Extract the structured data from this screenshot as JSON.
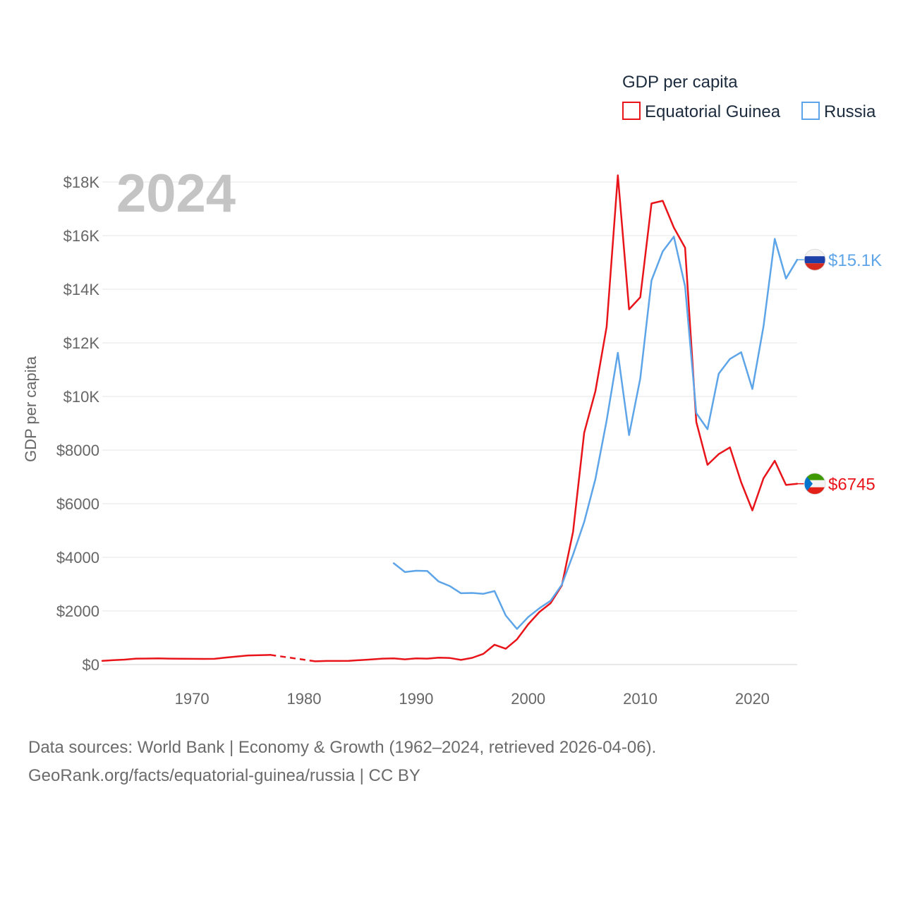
{
  "chart_data": {
    "type": "line",
    "title": "GDP per capita",
    "year_label": "2024",
    "xlabel": "",
    "ylabel": "GDP per capita",
    "xlim": [
      1962,
      2024
    ],
    "ylim": [
      0,
      18000
    ],
    "y_ticks": [
      {
        "value": 0,
        "label": "$0"
      },
      {
        "value": 2000,
        "label": "$2000"
      },
      {
        "value": 4000,
        "label": "$4000"
      },
      {
        "value": 6000,
        "label": "$6000"
      },
      {
        "value": 8000,
        "label": "$8000"
      },
      {
        "value": 10000,
        "label": "$10K"
      },
      {
        "value": 12000,
        "label": "$12K"
      },
      {
        "value": 14000,
        "label": "$14K"
      },
      {
        "value": 16000,
        "label": "$16K"
      },
      {
        "value": 18000,
        "label": "$18K"
      }
    ],
    "x_ticks": [
      1970,
      1980,
      1990,
      2000,
      2010,
      2020
    ],
    "legend_position": "top-right",
    "grid": true,
    "series": [
      {
        "name": "Equatorial Guinea",
        "color": "#e8141a",
        "end_label": "$6745",
        "flag": "equatorial-guinea-flag",
        "gap": [
          1977,
          1981
        ],
        "points": [
          [
            1962,
            140
          ],
          [
            1963,
            165
          ],
          [
            1964,
            185
          ],
          [
            1965,
            220
          ],
          [
            1966,
            225
          ],
          [
            1967,
            230
          ],
          [
            1968,
            220
          ],
          [
            1969,
            215
          ],
          [
            1970,
            212
          ],
          [
            1971,
            210
          ],
          [
            1972,
            212
          ],
          [
            1973,
            260
          ],
          [
            1974,
            300
          ],
          [
            1975,
            340
          ],
          [
            1976,
            350
          ],
          [
            1977,
            360
          ],
          [
            1981,
            120
          ],
          [
            1982,
            135
          ],
          [
            1983,
            135
          ],
          [
            1984,
            140
          ],
          [
            1985,
            165
          ],
          [
            1986,
            190
          ],
          [
            1987,
            220
          ],
          [
            1988,
            230
          ],
          [
            1989,
            195
          ],
          [
            1990,
            230
          ],
          [
            1991,
            220
          ],
          [
            1992,
            255
          ],
          [
            1993,
            245
          ],
          [
            1994,
            175
          ],
          [
            1995,
            250
          ],
          [
            1996,
            400
          ],
          [
            1997,
            740
          ],
          [
            1998,
            590
          ],
          [
            1999,
            940
          ],
          [
            2000,
            1500
          ],
          [
            2001,
            1960
          ],
          [
            2002,
            2290
          ],
          [
            2003,
            2950
          ],
          [
            2004,
            4950
          ],
          [
            2005,
            8650
          ],
          [
            2006,
            10200
          ],
          [
            2007,
            12600
          ],
          [
            2008,
            18250
          ],
          [
            2009,
            13250
          ],
          [
            2010,
            13700
          ],
          [
            2011,
            17200
          ],
          [
            2012,
            17300
          ],
          [
            2013,
            16300
          ],
          [
            2014,
            15550
          ],
          [
            2015,
            9050
          ],
          [
            2016,
            7450
          ],
          [
            2017,
            7850
          ],
          [
            2018,
            8100
          ],
          [
            2019,
            6800
          ],
          [
            2020,
            5750
          ],
          [
            2021,
            6950
          ],
          [
            2022,
            7600
          ],
          [
            2023,
            6700
          ],
          [
            2024,
            6745
          ]
        ]
      },
      {
        "name": "Russia",
        "color": "#5da5e8",
        "end_label": "$15.1K",
        "flag": "russia-flag",
        "points": [
          [
            1988,
            3780
          ],
          [
            1989,
            3450
          ],
          [
            1990,
            3500
          ],
          [
            1991,
            3490
          ],
          [
            1992,
            3100
          ],
          [
            1993,
            2930
          ],
          [
            1994,
            2660
          ],
          [
            1995,
            2670
          ],
          [
            1996,
            2640
          ],
          [
            1997,
            2740
          ],
          [
            1998,
            1830
          ],
          [
            1999,
            1330
          ],
          [
            2000,
            1770
          ],
          [
            2001,
            2100
          ],
          [
            2002,
            2380
          ],
          [
            2003,
            2980
          ],
          [
            2004,
            4100
          ],
          [
            2005,
            5320
          ],
          [
            2006,
            6920
          ],
          [
            2007,
            9100
          ],
          [
            2008,
            11630
          ],
          [
            2009,
            8560
          ],
          [
            2010,
            10680
          ],
          [
            2011,
            14330
          ],
          [
            2012,
            15410
          ],
          [
            2013,
            15960
          ],
          [
            2014,
            14110
          ],
          [
            2015,
            9380
          ],
          [
            2016,
            8780
          ],
          [
            2017,
            10850
          ],
          [
            2018,
            11400
          ],
          [
            2019,
            11650
          ],
          [
            2020,
            10280
          ],
          [
            2021,
            12620
          ],
          [
            2022,
            15880
          ],
          [
            2023,
            14400
          ],
          [
            2024,
            15100
          ]
        ]
      }
    ]
  },
  "footer": {
    "line1": "Data sources: World Bank | Economy & Growth (1962–2024, retrieved 2026-04-06).",
    "line2": "GeoRank.org/facts/equatorial-guinea/russia | CC BY"
  }
}
